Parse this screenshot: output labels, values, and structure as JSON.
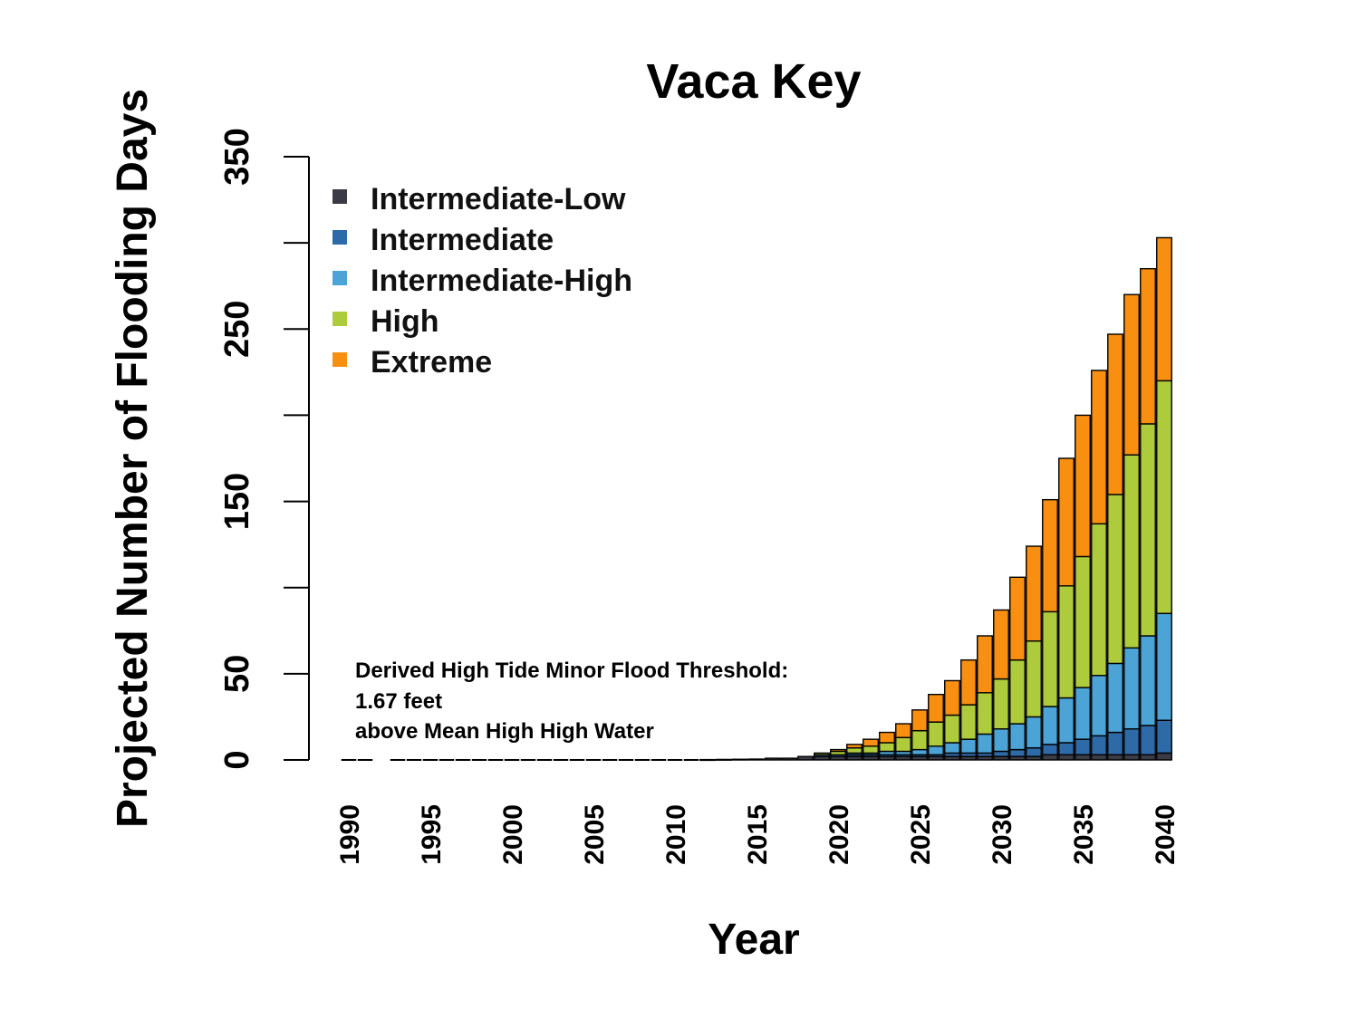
{
  "chart_data": {
    "type": "bar",
    "stacked": true,
    "title": "Vaca Key",
    "xlabel": "Year",
    "ylabel": "Projected Number of Flooding Days",
    "ylim": [
      0,
      350
    ],
    "yticks": [
      0,
      50,
      150,
      250,
      350
    ],
    "xticks": [
      1990,
      1995,
      2000,
      2005,
      2010,
      2015,
      2020,
      2025,
      2030,
      2035,
      2040
    ],
    "grid": false,
    "legend_position": "top-left",
    "annotation": [
      "Derived High Tide Minor Flood Threshold:",
      "1.67 feet",
      "above Mean High High Water"
    ],
    "categories": [
      1990,
      1991,
      1992,
      1993,
      1994,
      1995,
      1996,
      1997,
      1998,
      1999,
      2000,
      2001,
      2002,
      2003,
      2004,
      2005,
      2006,
      2007,
      2008,
      2009,
      2010,
      2011,
      2012,
      2013,
      2014,
      2015,
      2016,
      2017,
      2018,
      2019,
      2020,
      2021,
      2022,
      2023,
      2024,
      2025,
      2026,
      2027,
      2028,
      2029,
      2030,
      2031,
      2032,
      2033,
      2034,
      2035,
      2036,
      2037,
      2038,
      2039,
      2040
    ],
    "series": [
      {
        "name": "Intermediate-Low",
        "color": "#3a3b44",
        "values": [
          0,
          0,
          null,
          0,
          0,
          0,
          0,
          0,
          0,
          0,
          0,
          0,
          0,
          0,
          0,
          0,
          0,
          0,
          0,
          0,
          0,
          0,
          0.2,
          0.3,
          0.4,
          0.5,
          1,
          1,
          2,
          2,
          2,
          2,
          2,
          2,
          2,
          2,
          2,
          2,
          2,
          2,
          2,
          2,
          2,
          3,
          3,
          3,
          3,
          3,
          3,
          3,
          4
        ]
      },
      {
        "name": "Intermediate",
        "color": "#2e6aa8",
        "values": [
          0,
          0,
          null,
          0,
          0,
          0,
          0,
          0,
          0,
          0,
          0,
          0,
          0,
          0,
          0,
          0,
          0,
          0,
          0,
          0,
          0,
          0,
          0,
          0,
          0,
          0,
          0,
          0,
          0,
          1,
          1,
          1,
          1,
          1,
          1,
          1,
          1,
          2,
          2,
          2,
          3,
          4,
          5,
          6,
          7,
          9,
          11,
          13,
          15,
          17,
          19
        ]
      },
      {
        "name": "Intermediate-High",
        "color": "#4ba3d6",
        "values": [
          0,
          0,
          null,
          0,
          0,
          0,
          0,
          0,
          0,
          0,
          0,
          0,
          0,
          0,
          0,
          0,
          0,
          0,
          0,
          0,
          0,
          0,
          0,
          0,
          0,
          0,
          0,
          0,
          0,
          0,
          0,
          1,
          1,
          2,
          2,
          3,
          5,
          6,
          8,
          11,
          13,
          15,
          18,
          22,
          26,
          30,
          35,
          40,
          47,
          52,
          62
        ]
      },
      {
        "name": "High",
        "color": "#aecb3c",
        "values": [
          0,
          0,
          null,
          0,
          0,
          0,
          0,
          0,
          0,
          0,
          0,
          0,
          0,
          0,
          0,
          0,
          0,
          0,
          0,
          0,
          0,
          0,
          0,
          0,
          0,
          0,
          0,
          0,
          0,
          1,
          2,
          3,
          4,
          5,
          8,
          11,
          14,
          16,
          20,
          24,
          29,
          37,
          44,
          55,
          65,
          76,
          88,
          98,
          112,
          123,
          135
        ]
      },
      {
        "name": "Extreme",
        "color": "#f98f10",
        "values": [
          0,
          0,
          null,
          0,
          0,
          0,
          0,
          0,
          0,
          0,
          0,
          0,
          0,
          0,
          0,
          0,
          0,
          0,
          0,
          0,
          0,
          0,
          0,
          0,
          0,
          0,
          0,
          0,
          0,
          0,
          1,
          2,
          4,
          6,
          8,
          12,
          16,
          20,
          26,
          33,
          40,
          48,
          55,
          65,
          74,
          82,
          89,
          93,
          93,
          90,
          83
        ]
      }
    ]
  }
}
